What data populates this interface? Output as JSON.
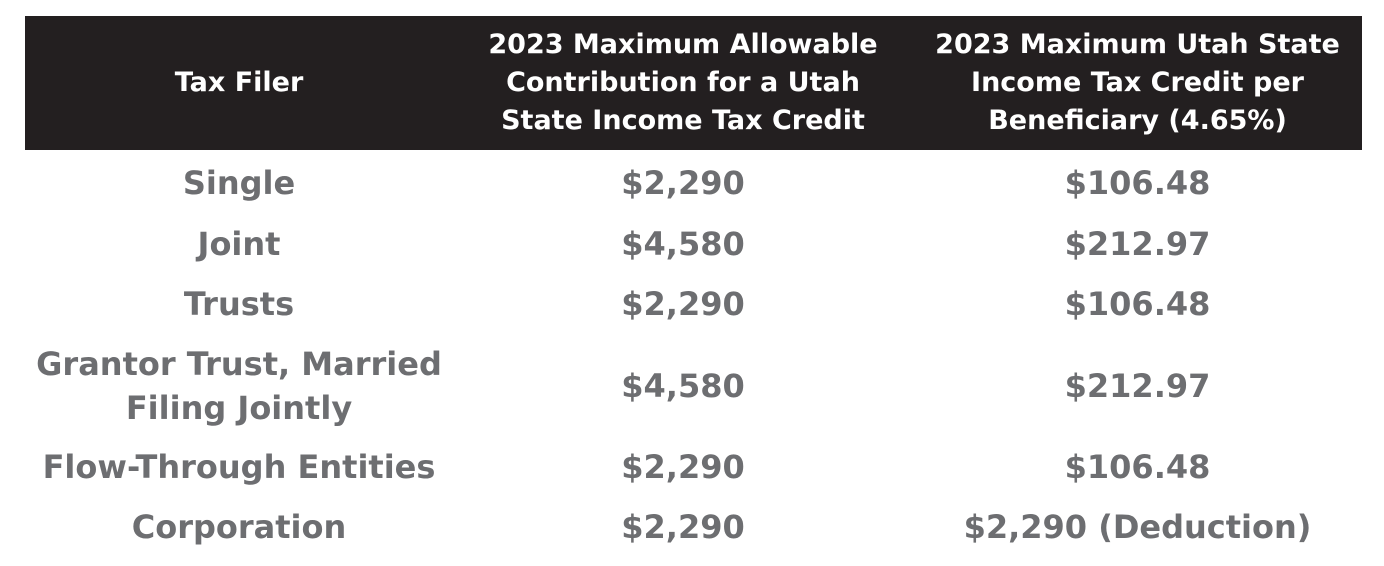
{
  "header": {
    "col1": "Tax Filer",
    "col2": "2023 Maximum Allowable\nContribution for a Utah\nState Income Tax Credit",
    "col3": "2023 Maximum Utah State\nIncome Tax Credit per\nBeneficiary (4.65%)"
  },
  "colors": {
    "header_bg": "#231f20",
    "header_text": "#ffffff",
    "body_text": "#6d6e71"
  },
  "rows": [
    {
      "filer": "Single",
      "contribution": "$2,290",
      "credit": "$106.48"
    },
    {
      "filer": "Joint",
      "contribution": "$4,580",
      "credit": "$212.97"
    },
    {
      "filer": "Trusts",
      "contribution": "$2,290",
      "credit": "$106.48"
    },
    {
      "filer": "Grantor Trust, Married\nFiling Jointly",
      "contribution": "$4,580",
      "credit": "$212.97"
    },
    {
      "filer": "Flow-Through Entities",
      "contribution": "$2,290",
      "credit": "$106.48"
    },
    {
      "filer": "Corporation",
      "contribution": "$2,290",
      "credit": "$2,290 (Deduction)"
    }
  ]
}
